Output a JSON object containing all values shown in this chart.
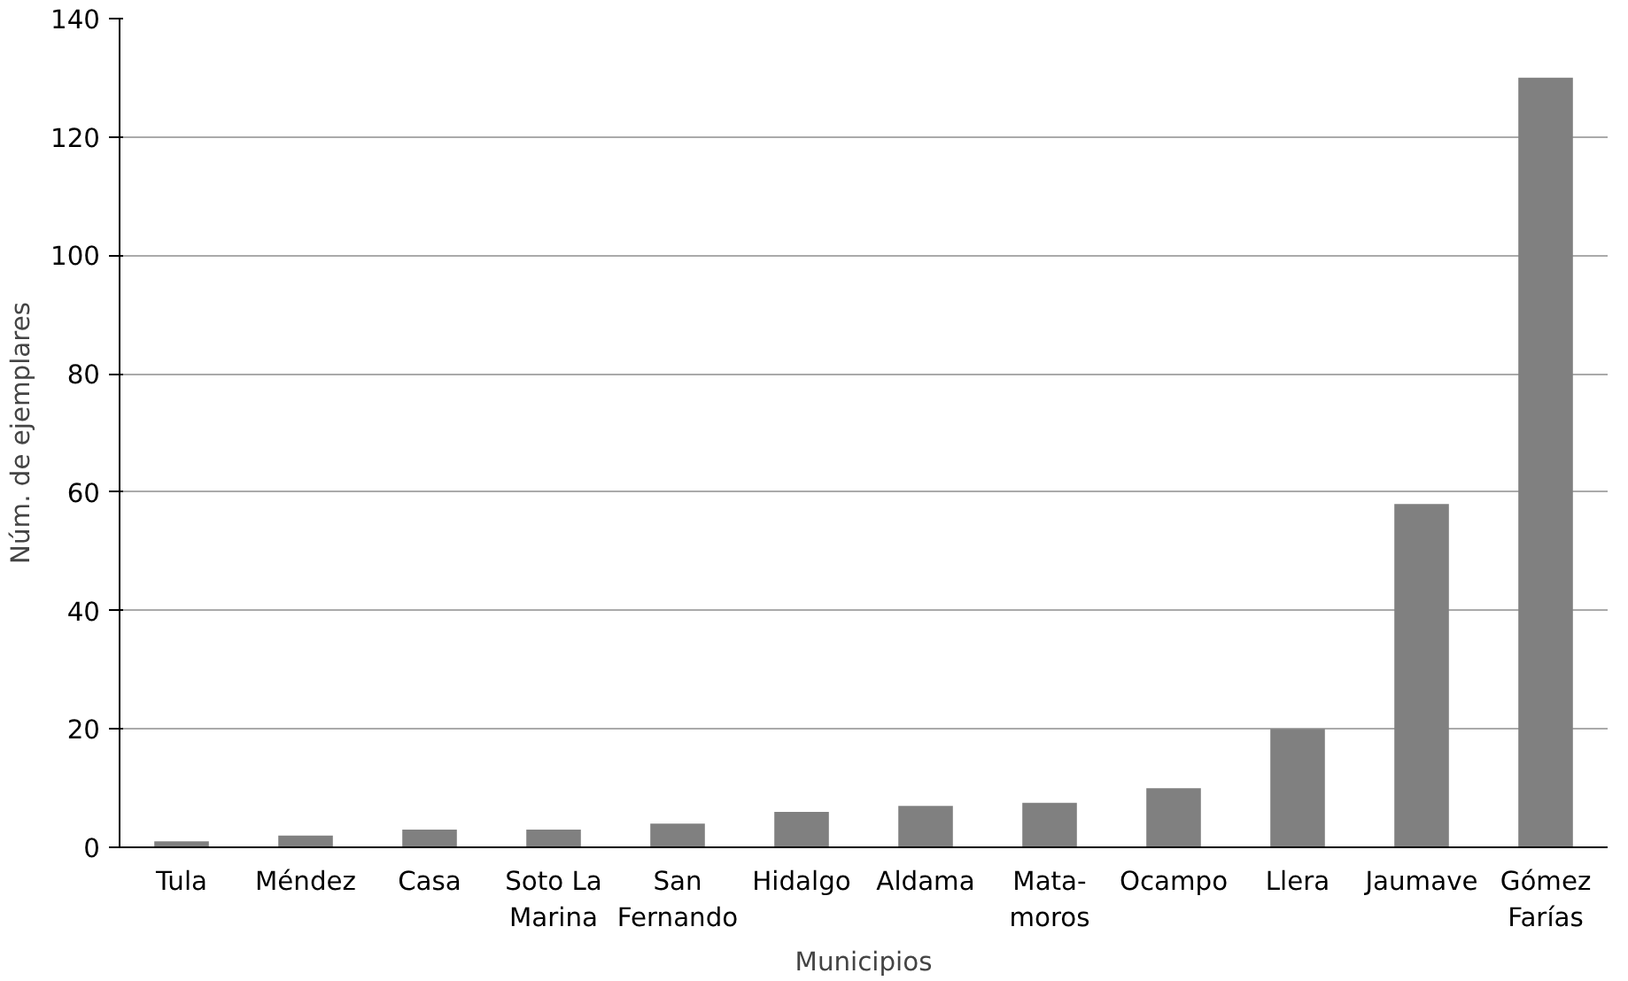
{
  "chart_data": {
    "type": "bar",
    "xlabel": "Municipios",
    "ylabel": "Núm. de ejemplares",
    "categories": [
      "Tula",
      "Méndez",
      "Casa",
      "Soto La\nMarina",
      "San\nFernando",
      "Hidalgo",
      "Aldama",
      "Mata-\nmoros",
      "Ocampo",
      "Llera",
      "Jaumave",
      "Gómez\nFarías"
    ],
    "values": [
      1,
      2,
      3,
      3,
      4,
      6,
      7,
      7.5,
      10,
      20,
      58,
      130
    ],
    "color": "#808080",
    "ylim": [
      0,
      140
    ],
    "yticks": [
      0,
      20,
      40,
      60,
      80,
      100,
      120,
      140
    ],
    "grid": "y"
  }
}
